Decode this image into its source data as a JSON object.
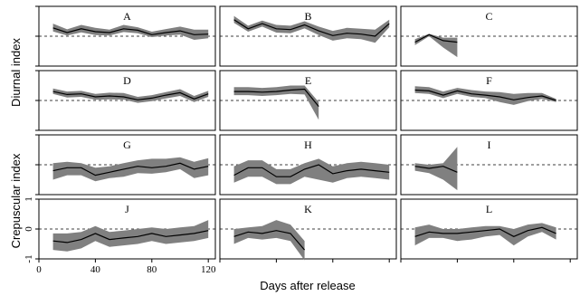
{
  "figure": {
    "xlabel": "Days after release",
    "ylabel_top": "Diurnal index",
    "ylabel_bottom": "Crepuscular index",
    "x_ticks": [
      "0",
      "40",
      "80",
      "120"
    ],
    "y_ticks": [
      "1",
      "0",
      "-1"
    ]
  },
  "chart_data": {
    "type": "line",
    "x": [
      10,
      20,
      30,
      40,
      50,
      60,
      70,
      80,
      90,
      100,
      110,
      120
    ],
    "xlim": [
      0,
      125
    ],
    "ylim": [
      -1,
      1
    ],
    "reference_line": 0,
    "band_color": "#808080",
    "line_color": "#000000",
    "panels": [
      {
        "letter": "A",
        "group": "Diurnal index",
        "mean": [
          0.28,
          0.12,
          0.25,
          0.15,
          0.12,
          0.25,
          0.2,
          0.05,
          0.12,
          0.18,
          0.05,
          0.07
        ],
        "lower": [
          0.16,
          0.02,
          0.13,
          0.04,
          0.02,
          0.14,
          0.1,
          -0.03,
          0.02,
          0.05,
          -0.12,
          -0.07
        ],
        "upper": [
          0.42,
          0.23,
          0.38,
          0.28,
          0.22,
          0.38,
          0.3,
          0.15,
          0.24,
          0.32,
          0.22,
          0.22
        ]
      },
      {
        "letter": "B",
        "group": "Diurnal index",
        "mean": [
          0.55,
          0.25,
          0.42,
          0.25,
          0.22,
          0.38,
          0.18,
          0.02,
          0.1,
          0.07,
          0.0,
          0.42
        ],
        "lower": [
          0.45,
          0.15,
          0.32,
          0.12,
          0.1,
          0.26,
          0.04,
          -0.15,
          -0.07,
          -0.1,
          -0.22,
          0.3
        ],
        "upper": [
          0.68,
          0.35,
          0.52,
          0.38,
          0.35,
          0.5,
          0.32,
          0.18,
          0.28,
          0.25,
          0.22,
          0.55
        ]
      },
      {
        "letter": "C",
        "group": "Diurnal index",
        "mean": [
          -0.2,
          0.05,
          -0.15,
          -0.2
        ],
        "lower": [
          -0.3,
          0.0,
          -0.38,
          -0.7
        ],
        "upper": [
          -0.1,
          0.08,
          -0.05,
          -0.05
        ]
      },
      {
        "letter": "D",
        "group": "Diurnal index",
        "mean": [
          0.3,
          0.2,
          0.22,
          0.12,
          0.15,
          0.12,
          0.02,
          0.08,
          0.18,
          0.26,
          0.05,
          0.22
        ],
        "lower": [
          0.22,
          0.1,
          0.12,
          0.02,
          0.04,
          0.03,
          -0.08,
          -0.02,
          0.07,
          0.15,
          -0.05,
          0.12
        ],
        "upper": [
          0.4,
          0.3,
          0.32,
          0.22,
          0.26,
          0.25,
          0.12,
          0.18,
          0.28,
          0.38,
          0.15,
          0.32
        ]
      },
      {
        "letter": "E",
        "group": "Diurnal index",
        "mean": [
          0.3,
          0.3,
          0.28,
          0.3,
          0.35,
          0.38,
          -0.2
        ],
        "lower": [
          0.18,
          0.18,
          0.15,
          0.18,
          0.22,
          0.2,
          -0.65
        ],
        "upper": [
          0.45,
          0.45,
          0.42,
          0.45,
          0.5,
          0.5,
          -0.05
        ]
      },
      {
        "letter": "F",
        "group": "Diurnal index",
        "mean": [
          0.35,
          0.32,
          0.18,
          0.32,
          0.22,
          0.18,
          0.12,
          0.02,
          0.1,
          0.15,
          0.0
        ],
        "lower": [
          0.25,
          0.22,
          0.08,
          0.22,
          0.12,
          0.08,
          -0.05,
          -0.15,
          -0.02,
          0.05,
          -0.05
        ],
        "upper": [
          0.48,
          0.45,
          0.3,
          0.42,
          0.35,
          0.3,
          0.28,
          0.22,
          0.25,
          0.25,
          0.05
        ]
      },
      {
        "letter": "G",
        "group": "Crepuscular index",
        "mean": [
          -0.2,
          -0.1,
          -0.1,
          -0.35,
          -0.25,
          -0.15,
          -0.05,
          -0.1,
          -0.05,
          0.05,
          -0.15,
          -0.05
        ],
        "lower": [
          -0.5,
          -0.35,
          -0.35,
          -0.55,
          -0.45,
          -0.4,
          -0.28,
          -0.3,
          -0.25,
          -0.15,
          -0.45,
          -0.35
        ],
        "upper": [
          0.05,
          0.1,
          0.05,
          -0.1,
          -0.05,
          0.05,
          0.15,
          0.2,
          0.2,
          0.25,
          0.1,
          0.22
        ]
      },
      {
        "letter": "H",
        "group": "Crepuscular index",
        "mean": [
          -0.35,
          -0.1,
          -0.1,
          -0.4,
          -0.4,
          -0.15,
          0.0,
          -0.3,
          -0.2,
          -0.15,
          -0.2,
          -0.25
        ],
        "lower": [
          -0.6,
          -0.4,
          -0.4,
          -0.65,
          -0.65,
          -0.4,
          -0.5,
          -0.6,
          -0.45,
          -0.4,
          -0.45,
          -0.5
        ],
        "upper": [
          -0.05,
          0.15,
          0.15,
          -0.15,
          -0.15,
          0.05,
          0.2,
          -0.05,
          0.05,
          0.1,
          0.05,
          0.0
        ]
      },
      {
        "letter": "I",
        "group": "Crepuscular index",
        "mean": [
          -0.05,
          -0.12,
          -0.05,
          -0.25
        ],
        "lower": [
          -0.2,
          -0.28,
          -0.5,
          -0.85
        ],
        "upper": [
          0.05,
          0.0,
          0.05,
          0.6
        ]
      },
      {
        "letter": "J",
        "group": "Crepuscular index",
        "mean": [
          -0.4,
          -0.45,
          -0.35,
          -0.15,
          -0.35,
          -0.3,
          -0.25,
          -0.15,
          -0.25,
          -0.2,
          -0.15,
          -0.05
        ],
        "lower": [
          -0.7,
          -0.75,
          -0.65,
          -0.4,
          -0.6,
          -0.55,
          -0.5,
          -0.4,
          -0.5,
          -0.45,
          -0.4,
          -0.3
        ],
        "upper": [
          -0.15,
          -0.15,
          -0.1,
          0.1,
          -0.1,
          -0.05,
          0.0,
          0.05,
          0.0,
          0.05,
          0.1,
          0.3
        ]
      },
      {
        "letter": "K",
        "group": "Crepuscular index",
        "mean": [
          -0.25,
          -0.1,
          -0.15,
          -0.05,
          -0.15,
          -0.7
        ],
        "lower": [
          -0.5,
          -0.3,
          -0.35,
          -0.3,
          -0.4,
          -1.05
        ],
        "upper": [
          0.0,
          0.05,
          0.1,
          0.3,
          0.15,
          -0.4
        ]
      },
      {
        "letter": "L",
        "group": "Crepuscular index",
        "mean": [
          -0.25,
          -0.1,
          -0.15,
          -0.15,
          -0.1,
          -0.05,
          0.0,
          -0.25,
          -0.05,
          0.05,
          -0.15
        ],
        "lower": [
          -0.55,
          -0.3,
          -0.3,
          -0.4,
          -0.35,
          -0.25,
          -0.2,
          -0.55,
          -0.25,
          -0.1,
          -0.35
        ],
        "upper": [
          0.05,
          0.15,
          0.0,
          0.0,
          0.05,
          0.1,
          0.1,
          0.0,
          0.15,
          0.2,
          0.05
        ]
      }
    ]
  }
}
